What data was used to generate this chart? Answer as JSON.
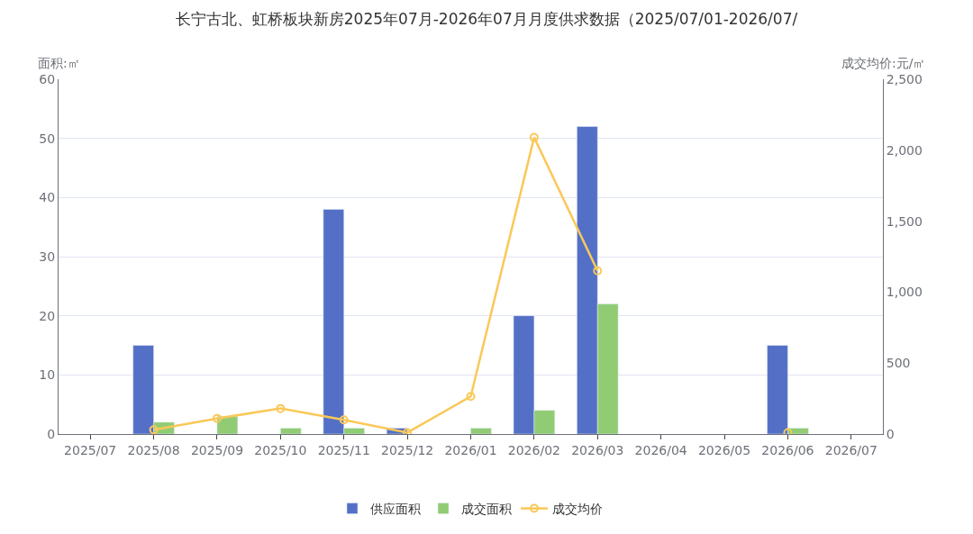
{
  "chart_data": {
    "type": "bar",
    "title": "长宁古北、虹桥板块新房2025年07月-2026年07月月度供求数据（2025/07/01-2026/07/",
    "ylabel": "面积:㎡",
    "y2label": "成交均价:元/㎡",
    "categories": [
      "2025/07",
      "2025/08",
      "2025/09",
      "2025/10",
      "2025/11",
      "2025/12",
      "2026/01",
      "2026/02",
      "2026/03",
      "2026/04",
      "2026/05",
      "2026/06",
      "2026/07"
    ],
    "series": [
      {
        "name": "供应面积",
        "color": "#5470c6",
        "values": [
          null,
          15,
          null,
          null,
          38,
          1,
          null,
          20,
          52,
          null,
          null,
          15,
          null
        ]
      },
      {
        "name": "成交面积",
        "color": "#91cc75",
        "values": [
          null,
          2,
          3,
          1,
          1,
          null,
          1,
          4,
          22,
          null,
          null,
          1,
          null
        ]
      },
      {
        "name": "成交均价",
        "type": "line",
        "axis": "y2",
        "color": "#fac858",
        "marker": "circle",
        "values": [
          null,
          30,
          110,
          180,
          100,
          10,
          265,
          2090,
          1150,
          null,
          null,
          10,
          null
        ]
      }
    ],
    "ylim": [
      0,
      60
    ],
    "yticks": [
      0,
      10,
      20,
      30,
      40,
      50,
      60
    ],
    "y2lim": [
      0,
      2500
    ],
    "y2ticks": [
      0,
      {
        "value": 500,
        "label": "500"
      },
      {
        "value": 1000,
        "label": "1,000"
      },
      {
        "value": 1500,
        "label": "1,500"
      },
      {
        "value": 2000,
        "label": "2,000"
      },
      {
        "value": 2500,
        "label": "2,500"
      }
    ],
    "grid": "y",
    "legend": "bottom"
  }
}
